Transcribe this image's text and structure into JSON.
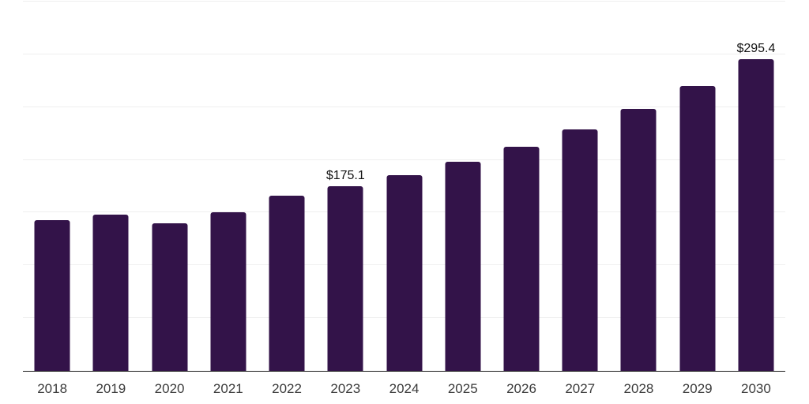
{
  "chart_data": {
    "type": "bar",
    "title": "",
    "xlabel": "",
    "ylabel": "",
    "categories": [
      "2018",
      "2019",
      "2020",
      "2021",
      "2022",
      "2023",
      "2024",
      "2025",
      "2026",
      "2027",
      "2028",
      "2029",
      "2030"
    ],
    "values": [
      143.0,
      148.0,
      140.0,
      150.2,
      166.0,
      175.1,
      185.6,
      198.2,
      212.7,
      228.5,
      248.0,
      270.3,
      295.4
    ],
    "data_labels": {
      "2023": "$175.1",
      "2030": "$295.4"
    },
    "ylim": [
      0,
      350
    ],
    "gridline_step": 50,
    "grid": true,
    "legend": false,
    "y_axis_labels_visible": false,
    "colors": {
      "bar": "#331349",
      "gridline": "#efefef",
      "axis_line": "#1c1c1c",
      "tick_label": "#3b3b3b",
      "value_label": "#121212",
      "background": "#ffffff"
    }
  }
}
